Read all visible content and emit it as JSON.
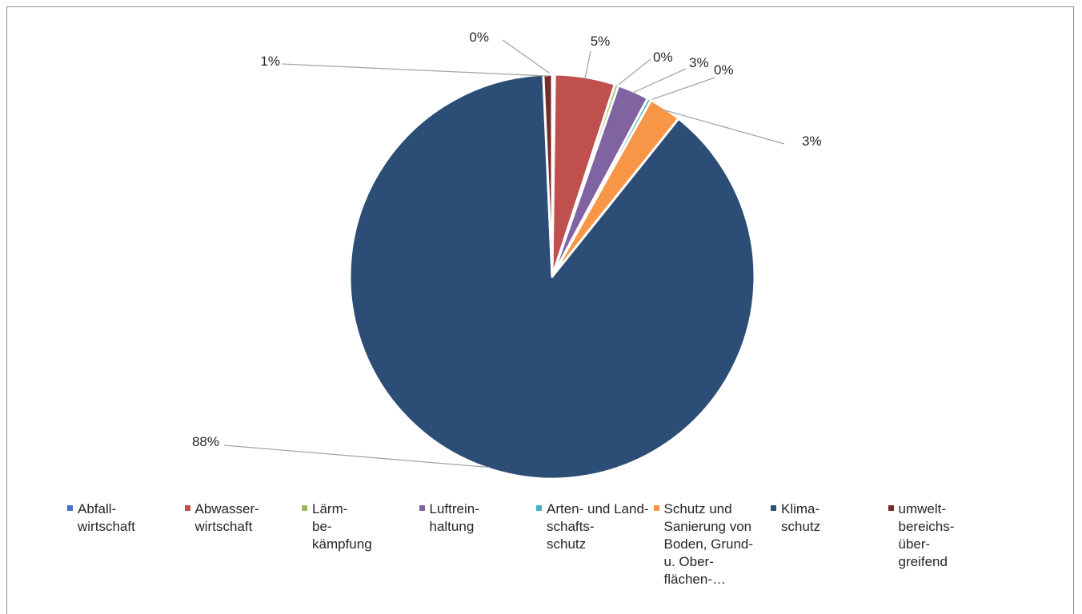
{
  "chart_data": {
    "type": "pie",
    "title": "",
    "slices": [
      {
        "label": "Abfall-\nwirtschaft",
        "value": 0.2,
        "data_label": "0%",
        "color": "#4472c4"
      },
      {
        "label": "Abwasser-\nwirtschaft",
        "value": 4.8,
        "data_label": "5%",
        "color": "#c0504d"
      },
      {
        "label": "Lärm-\nbe-\nkämpfung",
        "value": 0.3,
        "data_label": "0%",
        "color": "#9bbb59"
      },
      {
        "label": "Luftrein-\nhaltung",
        "value": 2.5,
        "data_label": "3%",
        "color": "#8064a2"
      },
      {
        "label": "Arten- und Land-\nschafts-\nschutz",
        "value": 0.3,
        "data_label": "0%",
        "color": "#4bacc6"
      },
      {
        "label": "Schutz und\nSanierung von\nBoden, Grund-\nu. Ober-\nflächen-…",
        "value": 2.6,
        "data_label": "3%",
        "color": "#f79646"
      },
      {
        "label": "Klima-\nschutz",
        "value": 88.3,
        "data_label": "88%",
        "color": "#2c4d75"
      },
      {
        "label": "umwelt-\nbereichs-\nüber-\ngreifend",
        "value": 0.7,
        "data_label": "1%",
        "color": "#772c2a"
      }
    ],
    "legend_position": "bottom"
  }
}
